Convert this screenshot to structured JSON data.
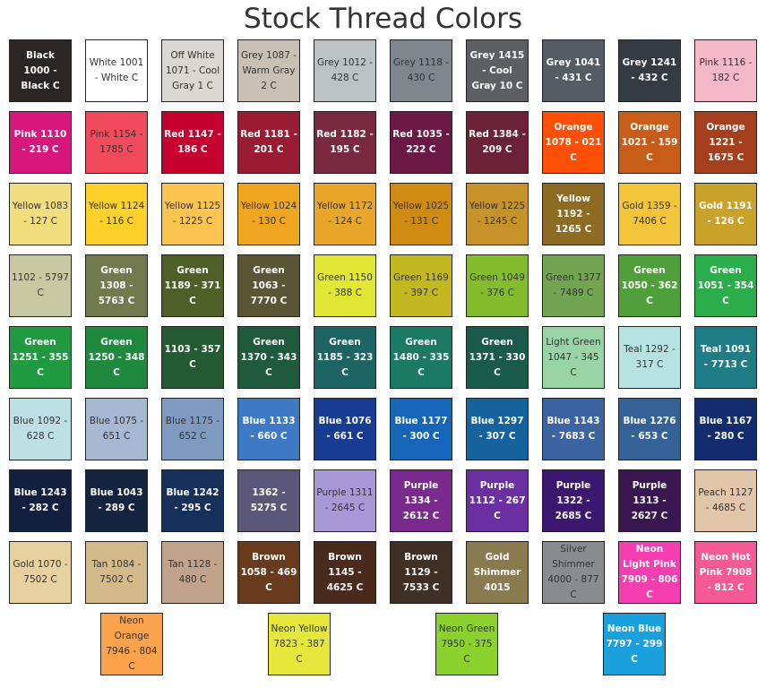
{
  "header": {
    "title": "Stock Thread Colors"
  },
  "swatch_rows": [
    [
      {
        "label": "Black 1000 - Black C",
        "color": "#2b2523",
        "text_color": "#ffffff"
      },
      {
        "label": "White 1001 - White C",
        "color": "#ffffff",
        "text_color": "#333333"
      },
      {
        "label": "Off White 1071 - Cool Gray 1 C",
        "color": "#d9d8d3",
        "text_color": "#333333"
      },
      {
        "label": "Grey 1087 - Warm Gray 2 C",
        "color": "#c9c0b6",
        "text_color": "#333333"
      },
      {
        "label": "Grey 1012 - 428 C",
        "color": "#bcc1c4",
        "text_color": "#333333"
      },
      {
        "label": "Grey 1118 - 430 C",
        "color": "#7f878d",
        "text_color": "#333333"
      },
      {
        "label": "Grey 1415 - Cool Gray 10 C",
        "color": "#5e5f63",
        "text_color": "#ffffff"
      },
      {
        "label": "Grey 1041 - 431 C",
        "color": "#545c64",
        "text_color": "#ffffff"
      },
      {
        "label": "Grey 1241 - 432 C",
        "color": "#343b42",
        "text_color": "#ffffff"
      },
      {
        "label": "Pink 1116 - 182 C",
        "color": "#f5b8c8",
        "text_color": "#333333"
      }
    ],
    [
      {
        "label": "Pink 1110 - 219 C",
        "color": "#d8177d",
        "text_color": "#ffffff"
      },
      {
        "label": "Pink 1154 - 1785 C",
        "color": "#f04a5c",
        "text_color": "#333333"
      },
      {
        "label": "Red 1147 - 186 C",
        "color": "#c5002f",
        "text_color": "#ffffff"
      },
      {
        "label": "Red 1181 - 201 C",
        "color": "#9a1c32",
        "text_color": "#ffffff"
      },
      {
        "label": "Red 1182 - 195 C",
        "color": "#7a2a3e",
        "text_color": "#ffffff"
      },
      {
        "label": "Red 1035 - 222 C",
        "color": "#6b1a45",
        "text_color": "#ffffff"
      },
      {
        "label": "Red 1384 - 209 C",
        "color": "#6b2237",
        "text_color": "#ffffff"
      },
      {
        "label": "Orange 1078 - 021 C",
        "color": "#fd5006",
        "text_color": "#ffffff"
      },
      {
        "label": "Orange 1021 - 159 C",
        "color": "#c85d1a",
        "text_color": "#ffffff"
      },
      {
        "label": "Orange 1221 - 1675 C",
        "color": "#a4401d",
        "text_color": "#ffffff"
      }
    ],
    [
      {
        "label": "Yellow 1083 - 127 C",
        "color": "#f2de7e",
        "text_color": "#333333"
      },
      {
        "label": "Yellow 1124 - 116 C",
        "color": "#fdd02a",
        "text_color": "#333333"
      },
      {
        "label": "Yellow 1125 - 1225 C",
        "color": "#fdc450",
        "text_color": "#333333"
      },
      {
        "label": "Yellow 1024 - 130 C",
        "color": "#f0a61f",
        "text_color": "#333333"
      },
      {
        "label": "Yellow 1172 - 124 C",
        "color": "#e8a72a",
        "text_color": "#333333"
      },
      {
        "label": "Yellow 1025 - 131 C",
        "color": "#d08c12",
        "text_color": "#333333"
      },
      {
        "label": "Yellow 1225 - 1245 C",
        "color": "#c59327",
        "text_color": "#333333"
      },
      {
        "label": "Yellow 1192 - 1265 C",
        "color": "#8d6b22",
        "text_color": "#ffffff"
      },
      {
        "label": "Gold 1359 - 7406 C",
        "color": "#f2c53a",
        "text_color": "#333333"
      },
      {
        "label": "Gold 1191 - 126 C",
        "color": "#c9a22a",
        "text_color": "#ffffff"
      }
    ],
    [
      {
        "label": "1102 - 5797 C",
        "color": "#c9c9a1",
        "text_color": "#333333"
      },
      {
        "label": "Green 1308 - 5763 C",
        "color": "#717a4e",
        "text_color": "#ffffff"
      },
      {
        "label": "Green 1189 - 371 C",
        "color": "#4f5f28",
        "text_color": "#ffffff"
      },
      {
        "label": "Green 1063 - 7770 C",
        "color": "#5a5535",
        "text_color": "#ffffff"
      },
      {
        "label": "Green 1150 - 388 C",
        "color": "#e2e635",
        "text_color": "#333333"
      },
      {
        "label": "Green 1169 - 397 C",
        "color": "#c2b821",
        "text_color": "#333333"
      },
      {
        "label": "Green 1049 - 376 C",
        "color": "#84bc2c",
        "text_color": "#333333"
      },
      {
        "label": "Green 1377 - 7489 C",
        "color": "#71a552",
        "text_color": "#333333"
      },
      {
        "label": "Green 1050 - 362 C",
        "color": "#4f9f3a",
        "text_color": "#ffffff"
      },
      {
        "label": "Green 1051 - 354 C",
        "color": "#2cad4c",
        "text_color": "#ffffff"
      }
    ],
    [
      {
        "label": "Green 1251 - 355 C",
        "color": "#1f9a40",
        "text_color": "#ffffff"
      },
      {
        "label": "Green 1250 - 348 C",
        "color": "#1f8a3e",
        "text_color": "#ffffff"
      },
      {
        "label": "1103 - 357 C",
        "color": "#255b33",
        "text_color": "#ffffff"
      },
      {
        "label": "Green 1370 - 343 C",
        "color": "#1e5a3b",
        "text_color": "#ffffff"
      },
      {
        "label": "Green 1185 - 323 C",
        "color": "#1d6465",
        "text_color": "#ffffff"
      },
      {
        "label": "Green 1480 - 335 C",
        "color": "#1a7a62",
        "text_color": "#ffffff"
      },
      {
        "label": "Green 1371 - 330 C",
        "color": "#1a5a4b",
        "text_color": "#ffffff"
      },
      {
        "label": "Light Green 1047 - 345 C",
        "color": "#98d4a6",
        "text_color": "#333333"
      },
      {
        "label": "Teal 1292 - 317 C",
        "color": "#b6e3e1",
        "text_color": "#333333"
      },
      {
        "label": "Teal 1091 - 7713 C",
        "color": "#1e7d86",
        "text_color": "#ffffff"
      }
    ],
    [
      {
        "label": "Blue 1092 - 628 C",
        "color": "#bde0e4",
        "text_color": "#333333"
      },
      {
        "label": "Blue 1075 - 651 C",
        "color": "#a7b8d3",
        "text_color": "#333333"
      },
      {
        "label": "Blue 1175 - 652 C",
        "color": "#7f9ac0",
        "text_color": "#333333"
      },
      {
        "label": "Blue 1133 - 660 C",
        "color": "#3e79c5",
        "text_color": "#ffffff"
      },
      {
        "label": "Blue 1076 - 661 C",
        "color": "#173c92",
        "text_color": "#ffffff"
      },
      {
        "label": "Blue 1177 - 300 C",
        "color": "#1566b9",
        "text_color": "#ffffff"
      },
      {
        "label": "Blue 1297 - 307 C",
        "color": "#15639c",
        "text_color": "#ffffff"
      },
      {
        "label": "Blue 1143 - 7683 C",
        "color": "#3c64a0",
        "text_color": "#ffffff"
      },
      {
        "label": "Blue 1276 - 653 C",
        "color": "#346296",
        "text_color": "#ffffff"
      },
      {
        "label": "Blue 1167 - 280 C",
        "color": "#132c6e",
        "text_color": "#ffffff"
      }
    ],
    [
      {
        "label": "Blue 1243 - 282 C",
        "color": "#121f3f",
        "text_color": "#ffffff"
      },
      {
        "label": "Blue 1043 - 289 C",
        "color": "#142340",
        "text_color": "#ffffff"
      },
      {
        "label": "Blue 1242 - 295 C",
        "color": "#15305a",
        "text_color": "#ffffff"
      },
      {
        "label": "1362 - 5275 C",
        "color": "#5a5778",
        "text_color": "#ffffff"
      },
      {
        "label": "Purple 1311 - 2645 C",
        "color": "#a998d6",
        "text_color": "#333333"
      },
      {
        "label": "Purple 1334 - 2612 C",
        "color": "#7a2a8c",
        "text_color": "#ffffff"
      },
      {
        "label": "Purple 1112 - 267 C",
        "color": "#6a2fa1",
        "text_color": "#ffffff"
      },
      {
        "label": "Purple 1322 - 2685 C",
        "color": "#3c1770",
        "text_color": "#ffffff"
      },
      {
        "label": "Purple 1313 - 2627 C",
        "color": "#3a1650",
        "text_color": "#ffffff"
      },
      {
        "label": "Peach 1127 - 4685 C",
        "color": "#e2c6aa",
        "text_color": "#333333"
      }
    ],
    [
      {
        "label": "Gold 1070 - 7502 C",
        "color": "#e7d29f",
        "text_color": "#333333"
      },
      {
        "label": "Tan 1084 - 7502 C",
        "color": "#d4b98a",
        "text_color": "#333333"
      },
      {
        "label": "Tan 1128 - 480 C",
        "color": "#c0a38a",
        "text_color": "#333333"
      },
      {
        "label": "Brown 1058 - 469 C",
        "color": "#683a1e",
        "text_color": "#ffffff"
      },
      {
        "label": "Brown 1145 - 4625 C",
        "color": "#4a2a1d",
        "text_color": "#ffffff"
      },
      {
        "label": "Brown 1129 - 7533 C",
        "color": "#3e3024",
        "text_color": "#ffffff"
      },
      {
        "label": "Gold Shimmer 4015",
        "color": "#8a7a50",
        "text_color": "#ffffff"
      },
      {
        "label": "Silver Shimmer 4000 - 877 C",
        "color": "#8a8c8e",
        "text_color": "#333333"
      },
      {
        "label": "Neon Light Pink 7909 - 806 C",
        "color": "#f53eb0",
        "text_color": "#ffffff"
      },
      {
        "label": "Neon Hot Pink 7908 - 812 C",
        "color": "#f55a95",
        "text_color": "#ffffff"
      }
    ],
    [
      {
        "label": "Neon Orange 7946 - 804 C",
        "color": "#fba24c",
        "text_color": "#333333"
      },
      {
        "label": "Neon Yellow 7823 - 387 C",
        "color": "#e5e83b",
        "text_color": "#333333"
      },
      {
        "label": "Neon Green 7950 - 375 C",
        "color": "#8bd22d",
        "text_color": "#333333"
      },
      {
        "label": "Neon Blue 7797 - 299 C",
        "color": "#1aa0dc",
        "text_color": "#ffffff"
      }
    ]
  ]
}
